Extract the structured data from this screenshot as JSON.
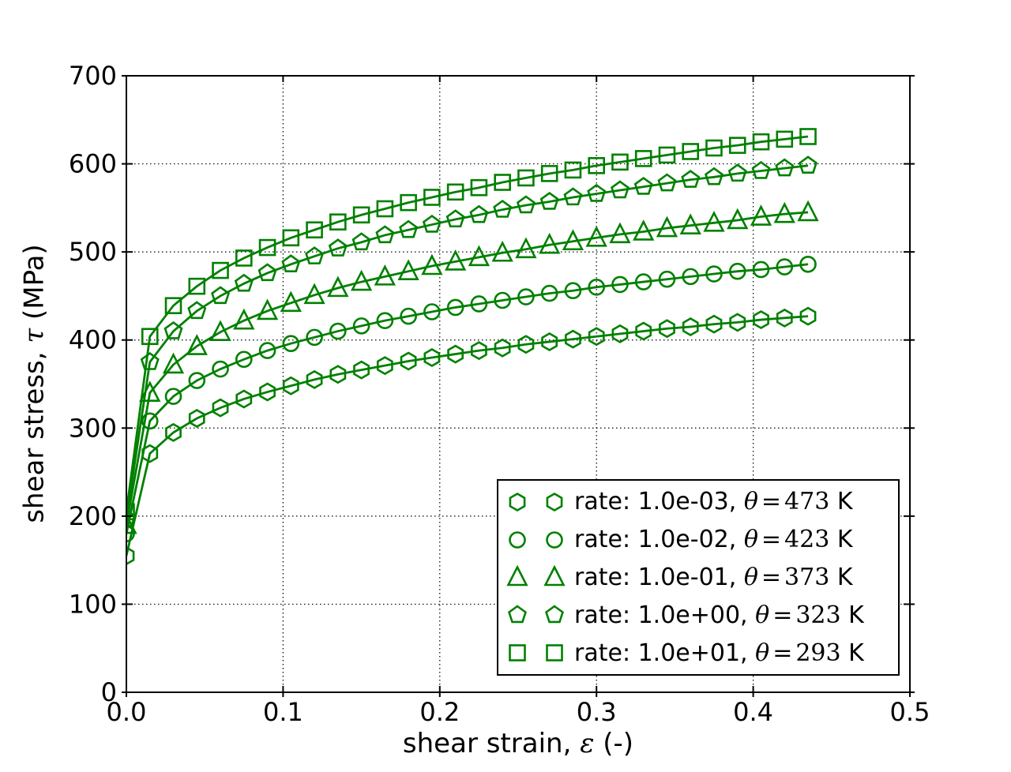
{
  "chart_data": {
    "type": "line",
    "title": "",
    "xlabel": {
      "prefix": "shear strain, ",
      "symbol": "ε",
      "suffix": " (-)"
    },
    "ylabel": {
      "prefix": "shear stress, ",
      "symbol": "τ",
      "suffix": " (MPa)"
    },
    "xlim": [
      0.0,
      0.5
    ],
    "ylim": [
      0,
      700
    ],
    "xticks": [
      0.0,
      0.1,
      0.2,
      0.3,
      0.4,
      0.5
    ],
    "xtick_labels": [
      "0.0",
      "0.1",
      "0.2",
      "0.3",
      "0.4",
      "0.5"
    ],
    "yticks": [
      0,
      100,
      200,
      300,
      400,
      500,
      600,
      700
    ],
    "ytick_labels": [
      "0",
      "100",
      "200",
      "300",
      "400",
      "500",
      "600",
      "700"
    ],
    "grid": true,
    "grid_style": "dotted",
    "grid_color": "#000000",
    "line_color": "#008000",
    "legend_position": "lower right",
    "x": [
      0.0,
      0.015,
      0.03,
      0.045,
      0.06,
      0.075,
      0.09,
      0.105,
      0.12,
      0.135,
      0.15,
      0.165,
      0.18,
      0.195,
      0.21,
      0.225,
      0.24,
      0.255,
      0.27,
      0.285,
      0.3,
      0.315,
      0.33,
      0.345,
      0.36,
      0.375,
      0.39,
      0.405,
      0.42,
      0.435
    ],
    "series": [
      {
        "name": "rate-1.0e-03",
        "marker": "hexagon",
        "legend": {
          "prefix": "rate: 1.0e-03, ",
          "theta": "θ",
          "eq": "=",
          "temp": "473",
          "unit": " K"
        },
        "y": [
          155,
          271,
          295,
          311,
          323,
          333,
          341,
          348,
          355,
          361,
          366,
          371,
          376,
          380,
          384,
          388,
          391,
          395,
          398,
          401,
          404,
          407,
          410,
          413,
          415,
          418,
          420,
          423,
          425,
          427
        ]
      },
      {
        "name": "rate-1.0e-02",
        "marker": "circle",
        "legend": {
          "prefix": "rate: 1.0e-02, ",
          "theta": "θ",
          "eq": "=",
          "temp": "423",
          "unit": " K"
        },
        "y": [
          180,
          308,
          336,
          354,
          367,
          378,
          388,
          396,
          403,
          410,
          416,
          422,
          427,
          432,
          437,
          441,
          445,
          449,
          453,
          456,
          460,
          463,
          466,
          469,
          472,
          475,
          478,
          480,
          483,
          486
        ]
      },
      {
        "name": "rate-1.0e-01",
        "marker": "triangle-up",
        "legend": {
          "prefix": "rate: 1.0e-01, ",
          "theta": "θ",
          "eq": "=",
          "temp": "373",
          "unit": " K"
        },
        "y": [
          190,
          340,
          372,
          393,
          409,
          422,
          433,
          442,
          451,
          459,
          466,
          472,
          478,
          484,
          489,
          494,
          499,
          503,
          508,
          512,
          516,
          520,
          523,
          527,
          530,
          533,
          536,
          540,
          543,
          545
        ]
      },
      {
        "name": "rate-1.0e+00",
        "marker": "pentagon",
        "legend": {
          "prefix": "rate: 1.0e+00, ",
          "theta": "θ",
          "eq": "=",
          "temp": "323",
          "unit": " K"
        },
        "y": [
          197,
          375,
          410,
          433,
          450,
          464,
          476,
          486,
          495,
          504,
          511,
          519,
          525,
          531,
          537,
          542,
          548,
          553,
          557,
          562,
          566,
          570,
          574,
          578,
          582,
          585,
          589,
          592,
          595,
          598
        ]
      },
      {
        "name": "rate-1.0e+01",
        "marker": "square",
        "legend": {
          "prefix": "rate: 1.0e+01, ",
          "theta": "θ",
          "eq": "=",
          "temp": "293",
          "unit": " K"
        },
        "y": [
          205,
          404,
          439,
          461,
          479,
          493,
          505,
          516,
          525,
          534,
          542,
          549,
          556,
          562,
          568,
          573,
          579,
          584,
          589,
          593,
          598,
          602,
          606,
          610,
          614,
          618,
          621,
          625,
          628,
          631
        ]
      }
    ]
  }
}
